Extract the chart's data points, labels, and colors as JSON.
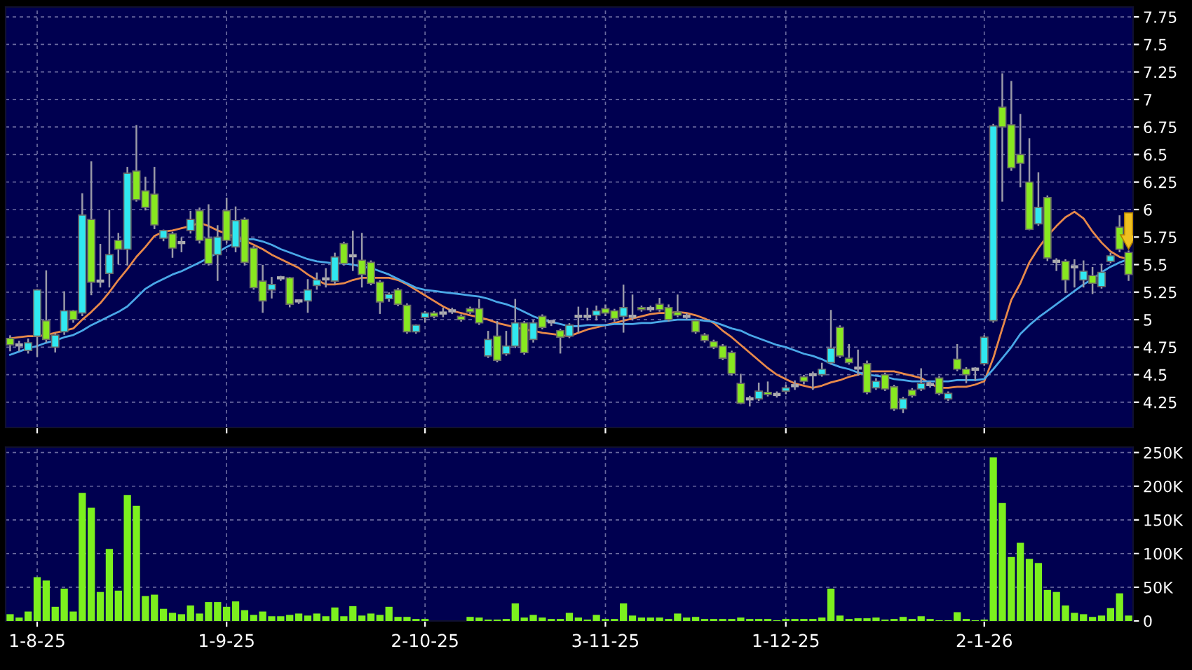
{
  "chart_data": [
    {
      "type": "candlestick",
      "categories": [
        null,
        null,
        null,
        null,
        null,
        null,
        null,
        null,
        null,
        null,
        null,
        null,
        null,
        null,
        null,
        null,
        null,
        null,
        null,
        null,
        null,
        null,
        null,
        null,
        null,
        null,
        null,
        null,
        null,
        null,
        null,
        null,
        null,
        null,
        null,
        null,
        null,
        null,
        null,
        null,
        null,
        null,
        null,
        null,
        null,
        null,
        null,
        null,
        null,
        null,
        null,
        null,
        null,
        null,
        null,
        null,
        null,
        null,
        null,
        null,
        null,
        null,
        null,
        null,
        null,
        null,
        null,
        null,
        null,
        null,
        null,
        null,
        null,
        null,
        null,
        null,
        null,
        null,
        null,
        null,
        null,
        null,
        null,
        null,
        null,
        null,
        null,
        null,
        null,
        null,
        null,
        null,
        null,
        null,
        null,
        null,
        null,
        null,
        null,
        null,
        null,
        null,
        null,
        null,
        null,
        null,
        null,
        null,
        null,
        null,
        null,
        null,
        null,
        null,
        null,
        null,
        null,
        null,
        null,
        null,
        null,
        null,
        null,
        null,
        null
      ],
      "ohlc": [
        [
          4.83,
          4.85,
          4.72,
          4.77
        ],
        [
          4.77,
          4.8,
          4.72,
          4.77
        ],
        [
          4.72,
          4.82,
          4.7,
          4.79
        ],
        [
          4.85,
          5.27,
          4.67,
          5.27
        ],
        [
          4.99,
          5.44,
          4.8,
          4.82
        ],
        [
          4.75,
          4.87,
          4.71,
          4.86
        ],
        [
          4.89,
          5.25,
          4.87,
          5.08
        ],
        [
          5.08,
          5.08,
          4.98,
          5.0
        ],
        [
          5.06,
          6.14,
          5.04,
          5.95
        ],
        [
          5.91,
          6.43,
          5.23,
          5.34
        ],
        [
          5.35,
          5.68,
          5.3,
          5.35
        ],
        [
          5.42,
          5.99,
          5.3,
          5.59
        ],
        [
          5.72,
          5.78,
          5.51,
          5.64
        ],
        [
          5.64,
          6.38,
          5.5,
          6.33
        ],
        [
          6.35,
          6.76,
          6.08,
          6.09
        ],
        [
          6.17,
          6.29,
          6.0,
          6.02
        ],
        [
          6.14,
          6.38,
          5.83,
          5.86
        ],
        [
          5.74,
          5.81,
          5.72,
          5.81
        ],
        [
          5.78,
          5.79,
          5.57,
          5.65
        ],
        [
          5.7,
          5.74,
          5.62,
          5.7
        ],
        [
          5.81,
          5.98,
          5.79,
          5.91
        ],
        [
          5.99,
          6.01,
          5.7,
          5.72
        ],
        [
          5.74,
          6.04,
          5.5,
          5.51
        ],
        [
          5.59,
          5.85,
          5.36,
          5.75
        ],
        [
          5.99,
          6.1,
          5.7,
          5.72
        ],
        [
          5.66,
          6.02,
          5.62,
          5.9
        ],
        [
          5.91,
          5.92,
          5.5,
          5.52
        ],
        [
          5.65,
          5.66,
          5.28,
          5.29
        ],
        [
          5.35,
          5.49,
          5.07,
          5.17
        ],
        [
          5.27,
          5.38,
          5.2,
          5.32
        ],
        [
          5.38,
          5.39,
          5.36,
          5.38
        ],
        [
          5.38,
          5.38,
          5.12,
          5.14
        ],
        [
          5.17,
          5.17,
          5.15,
          5.17
        ],
        [
          5.17,
          5.36,
          5.07,
          5.27
        ],
        [
          5.31,
          5.42,
          5.28,
          5.36
        ],
        [
          5.37,
          5.46,
          5.3,
          5.37
        ],
        [
          5.35,
          5.6,
          5.33,
          5.57
        ],
        [
          5.69,
          5.7,
          5.5,
          5.51
        ],
        [
          5.58,
          5.8,
          5.45,
          5.58
        ],
        [
          5.54,
          5.78,
          5.3,
          5.41
        ],
        [
          5.52,
          5.53,
          5.32,
          5.33
        ],
        [
          5.34,
          5.35,
          5.06,
          5.16
        ],
        [
          5.19,
          5.24,
          5.17,
          5.23
        ],
        [
          5.27,
          5.28,
          5.13,
          5.14
        ],
        [
          5.13,
          5.14,
          4.88,
          4.89
        ],
        [
          4.89,
          4.95,
          4.88,
          4.95
        ],
        [
          5.02,
          5.07,
          4.98,
          5.06
        ],
        [
          5.06,
          5.07,
          5.02,
          5.03
        ],
        [
          5.06,
          5.1,
          5.03,
          5.06
        ],
        [
          5.08,
          5.1,
          5.06,
          5.08
        ],
        [
          5.03,
          5.04,
          4.99,
          5.0
        ],
        [
          5.1,
          5.11,
          5.06,
          5.07
        ],
        [
          5.1,
          5.18,
          4.96,
          4.97
        ],
        [
          4.67,
          4.89,
          4.66,
          4.82
        ],
        [
          4.85,
          4.98,
          4.62,
          4.63
        ],
        [
          4.69,
          4.89,
          4.68,
          4.76
        ],
        [
          4.76,
          5.18,
          4.75,
          4.97
        ],
        [
          4.97,
          4.98,
          4.69,
          4.7
        ],
        [
          4.82,
          4.99,
          4.8,
          4.97
        ],
        [
          5.03,
          5.04,
          4.92,
          4.93
        ],
        [
          4.98,
          4.99,
          4.95,
          4.98
        ],
        [
          4.9,
          4.91,
          4.7,
          4.84
        ],
        [
          4.85,
          4.96,
          4.84,
          4.95
        ],
        [
          5.03,
          5.11,
          4.89,
          5.03
        ],
        [
          5.03,
          5.1,
          5.0,
          5.03
        ],
        [
          5.04,
          5.12,
          5.0,
          5.08
        ],
        [
          5.1,
          5.13,
          5.04,
          5.06
        ],
        [
          5.08,
          5.09,
          4.99,
          5.01
        ],
        [
          5.03,
          5.31,
          4.89,
          5.11
        ],
        [
          5.03,
          5.22,
          5.0,
          5.03
        ],
        [
          5.11,
          5.12,
          5.08,
          5.09
        ],
        [
          5.1,
          5.12,
          5.08,
          5.1
        ],
        [
          5.14,
          5.19,
          5.08,
          5.09
        ],
        [
          5.11,
          5.13,
          4.99,
          5.0
        ],
        [
          5.07,
          5.22,
          5.03,
          5.04
        ],
        [
          5.03,
          5.05,
          5.01,
          5.03
        ],
        [
          4.99,
          5.0,
          4.88,
          4.89
        ],
        [
          4.86,
          4.87,
          4.8,
          4.81
        ],
        [
          4.8,
          4.81,
          4.74,
          4.75
        ],
        [
          4.76,
          4.77,
          4.64,
          4.65
        ],
        [
          4.7,
          4.71,
          4.5,
          4.51
        ],
        [
          4.42,
          4.5,
          4.24,
          4.24
        ],
        [
          4.28,
          4.3,
          4.22,
          4.28
        ],
        [
          4.28,
          4.42,
          4.27,
          4.35
        ],
        [
          4.34,
          4.43,
          4.31,
          4.32
        ],
        [
          4.32,
          4.34,
          4.3,
          4.32
        ],
        [
          4.35,
          4.4,
          4.33,
          4.38
        ],
        [
          4.4,
          4.44,
          4.37,
          4.4
        ],
        [
          4.48,
          4.49,
          4.42,
          4.44
        ],
        [
          4.5,
          4.52,
          4.37,
          4.5
        ],
        [
          4.5,
          4.6,
          4.49,
          4.55
        ],
        [
          4.61,
          5.08,
          4.6,
          4.74
        ],
        [
          4.93,
          4.94,
          4.66,
          4.67
        ],
        [
          4.65,
          4.77,
          4.6,
          4.61
        ],
        [
          4.56,
          4.72,
          4.5,
          4.56
        ],
        [
          4.6,
          4.62,
          4.33,
          4.34
        ],
        [
          4.38,
          4.46,
          4.37,
          4.44
        ],
        [
          4.5,
          4.51,
          4.36,
          4.37
        ],
        [
          4.39,
          4.4,
          4.18,
          4.19
        ],
        [
          4.19,
          4.29,
          4.16,
          4.28
        ],
        [
          4.36,
          4.37,
          4.3,
          4.31
        ],
        [
          4.37,
          4.55,
          4.36,
          4.42
        ],
        [
          4.41,
          4.43,
          4.39,
          4.41
        ],
        [
          4.47,
          4.48,
          4.32,
          4.33
        ],
        [
          4.28,
          4.34,
          4.27,
          4.33
        ],
        [
          4.64,
          4.77,
          4.54,
          4.55
        ],
        [
          4.55,
          4.56,
          4.43,
          4.5
        ],
        [
          4.55,
          4.56,
          4.45,
          4.55
        ],
        [
          4.6,
          4.85,
          4.59,
          4.84
        ],
        [
          4.99,
          6.77,
          4.98,
          6.76
        ],
        [
          6.93,
          7.23,
          6.08,
          6.75
        ],
        [
          6.77,
          7.16,
          6.36,
          6.38
        ],
        [
          6.5,
          6.86,
          6.21,
          6.42
        ],
        [
          6.25,
          6.64,
          5.82,
          5.82
        ],
        [
          5.87,
          6.33,
          5.86,
          6.02
        ],
        [
          6.11,
          6.12,
          5.54,
          5.56
        ],
        [
          5.53,
          5.55,
          5.45,
          5.53
        ],
        [
          5.53,
          5.54,
          5.25,
          5.36
        ],
        [
          5.48,
          5.54,
          5.3,
          5.48
        ],
        [
          5.36,
          5.53,
          5.3,
          5.44
        ],
        [
          5.4,
          5.47,
          5.24,
          5.33
        ],
        [
          5.3,
          5.5,
          5.29,
          5.43
        ],
        [
          5.53,
          5.6,
          5.52,
          5.58
        ],
        [
          5.84,
          5.94,
          5.62,
          5.64
        ],
        [
          5.61,
          5.62,
          5.36,
          5.41
        ]
      ],
      "colors": [
        "#88e820",
        "#b0b0b0",
        "#30e8f0",
        "#30e8f0",
        "#88e820",
        "#30e8f0",
        "#30e8f0",
        "#88e820",
        "#30e8f0",
        "#88e820",
        "#b0b0b0",
        "#30e8f0",
        "#88e820",
        "#30e8f0",
        "#88e820",
        "#88e820",
        "#88e820",
        "#30e8f0",
        "#88e820",
        "#b0b0b0",
        "#30e8f0",
        "#88e820",
        "#88e820",
        "#30e8f0",
        "#88e820",
        "#30e8f0",
        "#88e820",
        "#88e820",
        "#88e820",
        "#30e8f0",
        "#b0b0b0",
        "#88e820",
        "#b0b0b0",
        "#30e8f0",
        "#30e8f0",
        "#b0b0b0",
        "#30e8f0",
        "#88e820",
        "#b0b0b0",
        "#88e820",
        "#88e820",
        "#88e820",
        "#30e8f0",
        "#88e820",
        "#88e820",
        "#30e8f0",
        "#30e8f0",
        "#88e820",
        "#b0b0b0",
        "#b0b0b0",
        "#88e820",
        "#88e820",
        "#88e820",
        "#30e8f0",
        "#88e820",
        "#30e8f0",
        "#30e8f0",
        "#88e820",
        "#30e8f0",
        "#88e820",
        "#b0b0b0",
        "#88e820",
        "#30e8f0",
        "#b0b0b0",
        "#b0b0b0",
        "#30e8f0",
        "#88e820",
        "#88e820",
        "#30e8f0",
        "#b0b0b0",
        "#88e820",
        "#b0b0b0",
        "#88e820",
        "#88e820",
        "#88e820",
        "#b0b0b0",
        "#88e820",
        "#88e820",
        "#88e820",
        "#88e820",
        "#88e820",
        "#88e820",
        "#b0b0b0",
        "#30e8f0",
        "#88e820",
        "#b0b0b0",
        "#30e8f0",
        "#b0b0b0",
        "#88e820",
        "#b0b0b0",
        "#30e8f0",
        "#30e8f0",
        "#88e820",
        "#88e820",
        "#b0b0b0",
        "#88e820",
        "#30e8f0",
        "#88e820",
        "#88e820",
        "#30e8f0",
        "#88e820",
        "#30e8f0",
        "#b0b0b0",
        "#88e820",
        "#30e8f0",
        "#88e820",
        "#88e820",
        "#b0b0b0",
        "#30e8f0",
        "#30e8f0",
        "#88e820",
        "#88e820",
        "#88e820",
        "#88e820",
        "#30e8f0",
        "#88e820",
        "#b0b0b0",
        "#88e820",
        "#b0b0b0",
        "#30e8f0",
        "#88e820",
        "#30e8f0",
        "#30e8f0",
        "#88e820",
        "#88e820"
      ],
      "series": [
        {
          "type": "line",
          "color": "#e8894a",
          "values": [
            4.83,
            4.84,
            4.85,
            4.85,
            4.86,
            4.88,
            4.9,
            4.92,
            5.0,
            5.07,
            5.15,
            5.25,
            5.36,
            5.46,
            5.57,
            5.66,
            5.76,
            5.8,
            5.81,
            5.83,
            5.85,
            5.88,
            5.85,
            5.81,
            5.78,
            5.75,
            5.72,
            5.68,
            5.64,
            5.59,
            5.55,
            5.51,
            5.47,
            5.41,
            5.36,
            5.32,
            5.32,
            5.33,
            5.36,
            5.38,
            5.38,
            5.38,
            5.38,
            5.36,
            5.32,
            5.27,
            5.22,
            5.17,
            5.12,
            5.08,
            5.06,
            5.04,
            5.02,
            5.0,
            4.97,
            4.95,
            4.93,
            4.91,
            4.9,
            4.88,
            4.87,
            4.86,
            4.85,
            4.88,
            4.91,
            4.93,
            4.95,
            4.97,
            4.99,
            5.01,
            5.03,
            5.05,
            5.06,
            5.06,
            5.07,
            5.06,
            5.04,
            5.01,
            4.97,
            4.9,
            4.84,
            4.77,
            4.7,
            4.63,
            4.56,
            4.5,
            4.46,
            4.42,
            4.4,
            4.38,
            4.4,
            4.43,
            4.45,
            4.48,
            4.5,
            4.53,
            4.53,
            4.53,
            4.53,
            4.51,
            4.49,
            4.47,
            4.42,
            4.38,
            4.38,
            4.39,
            4.39,
            4.41,
            4.44,
            4.65,
            4.92,
            5.18,
            5.33,
            5.52,
            5.65,
            5.76,
            5.85,
            5.93,
            5.98,
            5.92,
            5.8,
            5.7,
            5.62,
            5.57,
            5.55
          ]
        },
        {
          "type": "line",
          "color": "#4aa8e8",
          "values": [
            4.68,
            4.71,
            4.74,
            4.76,
            4.79,
            4.81,
            4.84,
            4.86,
            4.9,
            4.95,
            4.99,
            5.03,
            5.07,
            5.12,
            5.2,
            5.28,
            5.33,
            5.37,
            5.41,
            5.44,
            5.48,
            5.52,
            5.56,
            5.61,
            5.66,
            5.7,
            5.73,
            5.73,
            5.71,
            5.68,
            5.64,
            5.61,
            5.58,
            5.55,
            5.53,
            5.52,
            5.51,
            5.51,
            5.5,
            5.48,
            5.47,
            5.44,
            5.41,
            5.37,
            5.33,
            5.29,
            5.27,
            5.26,
            5.25,
            5.24,
            5.23,
            5.22,
            5.21,
            5.19,
            5.16,
            5.14,
            5.11,
            5.07,
            5.03,
            5.0,
            4.98,
            4.96,
            4.94,
            4.94,
            4.95,
            4.95,
            4.95,
            4.96,
            4.96,
            4.96,
            4.97,
            4.97,
            4.98,
            4.99,
            5.0,
            5.0,
            5.0,
            4.99,
            4.98,
            4.95,
            4.92,
            4.9,
            4.86,
            4.83,
            4.8,
            4.77,
            4.75,
            4.72,
            4.69,
            4.67,
            4.64,
            4.6,
            4.57,
            4.55,
            4.52,
            4.5,
            4.49,
            4.48,
            4.46,
            4.45,
            4.44,
            4.44,
            4.44,
            4.44,
            4.44,
            4.45,
            4.45,
            4.45,
            4.46,
            4.55,
            4.65,
            4.75,
            4.87,
            4.95,
            5.02,
            5.08,
            5.14,
            5.2,
            5.26,
            5.32,
            5.37,
            5.43,
            5.48,
            5.52,
            5.55
          ]
        }
      ],
      "ylim": [
        4.02,
        7.84
      ],
      "yticks": [
        4.25,
        4.5,
        4.75,
        5,
        5.25,
        5.5,
        5.75,
        6,
        6.25,
        6.5,
        6.75,
        7,
        7.25,
        7.5,
        7.75
      ],
      "grid": true,
      "tick_labels": "y"
    },
    {
      "type": "bar",
      "categories": [
        null,
        null,
        null,
        "1-8-25",
        null,
        null,
        null,
        null,
        null,
        null,
        null,
        null,
        null,
        null,
        null,
        null,
        null,
        null,
        null,
        null,
        null,
        null,
        null,
        null,
        "1-9-25",
        null,
        null,
        null,
        null,
        null,
        null,
        null,
        null,
        null,
        null,
        null,
        null,
        null,
        null,
        null,
        null,
        null,
        null,
        null,
        null,
        null,
        "2-10-25",
        null,
        null,
        null,
        null,
        null,
        null,
        null,
        null,
        null,
        null,
        null,
        null,
        null,
        null,
        null,
        null,
        null,
        null,
        null,
        "3-11-25",
        null,
        null,
        null,
        null,
        null,
        null,
        null,
        null,
        null,
        null,
        null,
        null,
        null,
        null,
        null,
        null,
        null,
        null,
        null,
        "1-12-25",
        null,
        null,
        null,
        null,
        null,
        null,
        null,
        null,
        null,
        null,
        null,
        null,
        null,
        null,
        null,
        null,
        null,
        null,
        null,
        null,
        null,
        "2-1-26",
        null,
        null,
        null,
        null,
        null,
        null,
        null,
        null,
        null,
        null,
        null,
        null,
        null,
        null,
        null,
        null
      ],
      "values": [
        10,
        5,
        14,
        65,
        60,
        21,
        48,
        14,
        190,
        168,
        43,
        107,
        45,
        187,
        171,
        37,
        39,
        18,
        12,
        10,
        23,
        11,
        28,
        28,
        21,
        29,
        16,
        9,
        14,
        7,
        7,
        9,
        11,
        8,
        11,
        7,
        20,
        7,
        22,
        8,
        11,
        9,
        21,
        6,
        6,
        3,
        3,
        0,
        0,
        0,
        0,
        6,
        5,
        2,
        2,
        3,
        26,
        5,
        9,
        5,
        3,
        3,
        12,
        5,
        2,
        9,
        3,
        3,
        26,
        8,
        5,
        5,
        5,
        3,
        11,
        5,
        6,
        3,
        3,
        3,
        3,
        5,
        3,
        3,
        3,
        1,
        3,
        3,
        3,
        3,
        5,
        48,
        8,
        3,
        4,
        4,
        5,
        2,
        3,
        6,
        3,
        7,
        3,
        1,
        1,
        13,
        3,
        1,
        2,
        243,
        175,
        95,
        116,
        92,
        86,
        46,
        43,
        23,
        12,
        10,
        6,
        8,
        19,
        41,
        8
      ],
      "color": "#7cf01e",
      "ylim": [
        0,
        258
      ],
      "yticks": [
        0,
        {
          "value": 50,
          "label": "50K"
        },
        {
          "value": 100,
          "label": "100K"
        },
        {
          "value": 150,
          "label": "150K"
        },
        {
          "value": 200,
          "label": "200K"
        },
        {
          "value": 250,
          "label": "250K"
        }
      ],
      "grid": true
    }
  ]
}
